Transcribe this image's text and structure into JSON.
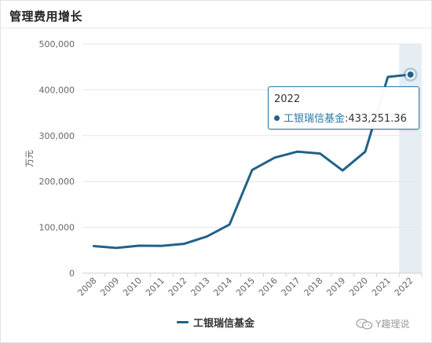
{
  "title": "管理费用增长",
  "watermark": "Y趣理说",
  "tooltip": {
    "year": "2022",
    "series": "工银瑞信基金",
    "value_text": "433,251.36"
  },
  "colors": {
    "line": "#21628a",
    "tooltip_border": "#2a7aa0",
    "highlight_band": "#e6eef4"
  },
  "chart_data": {
    "type": "line",
    "ylabel": "万元",
    "xlabel": "",
    "ylim": [
      0,
      500000
    ],
    "yticks": [
      0,
      100000,
      200000,
      300000,
      400000,
      500000
    ],
    "ytick_labels": [
      "0",
      "100,000",
      "200,000",
      "300,000",
      "400,000",
      "500,000"
    ],
    "categories": [
      "2008",
      "2009",
      "2010",
      "2011",
      "2012",
      "2013",
      "2014",
      "2015",
      "2016",
      "2017",
      "2018",
      "2019",
      "2020",
      "2021",
      "2022"
    ],
    "series": [
      {
        "name": "工银瑞信基金",
        "values": [
          59000,
          55000,
          60000,
          59500,
          64000,
          80000,
          106000,
          225000,
          252000,
          265000,
          261000,
          224000,
          265000,
          428000,
          433251.36
        ]
      }
    ],
    "highlight": "2022",
    "grid": true,
    "legend": "bottom-center"
  }
}
